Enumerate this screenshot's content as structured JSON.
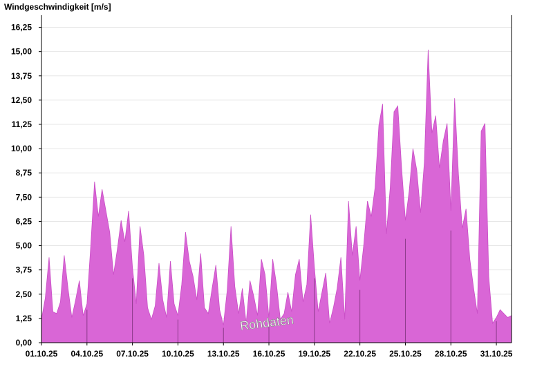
{
  "chart_data": {
    "type": "area",
    "title": "",
    "ylabel": "Windgeschwindigkeit [m/s]",
    "xlabel": "",
    "ylim": [
      0,
      16.875
    ],
    "xlim": [
      "2025-10-01",
      "2025-11-01"
    ],
    "yticks": [
      "0,00",
      "1,25",
      "2,50",
      "3,75",
      "5,00",
      "6,25",
      "7,50",
      "8,75",
      "10,00",
      "11,25",
      "12,50",
      "13,75",
      "15,00",
      "16,25"
    ],
    "xticks": [
      "01.10.25",
      "04.10.25",
      "07.10.25",
      "10.10.25",
      "13.10.25",
      "16.10.25",
      "19.10.25",
      "22.10.25",
      "25.10.25",
      "28.10.25",
      "31.10.25"
    ],
    "grid": true,
    "annotation": "Rohdaten",
    "colors": {
      "fill": "#d966d6",
      "stroke": "#c94fc6",
      "grid": "#e6e6e6",
      "axis": "#000000"
    },
    "series": [
      {
        "x": [
          "2025-10-01T00:00",
          "2025-10-01T06:00",
          "2025-10-01T12:00",
          "2025-10-01T18:00",
          "2025-10-02T00:00",
          "2025-10-02T06:00",
          "2025-10-02T12:00",
          "2025-10-02T18:00",
          "2025-10-03T00:00",
          "2025-10-03T06:00",
          "2025-10-03T12:00",
          "2025-10-03T18:00",
          "2025-10-04T00:00",
          "2025-10-04T06:00",
          "2025-10-04T12:00",
          "2025-10-04T18:00",
          "2025-10-05T00:00",
          "2025-10-05T06:00",
          "2025-10-05T12:00",
          "2025-10-05T18:00",
          "2025-10-06T00:00",
          "2025-10-06T06:00",
          "2025-10-06T12:00",
          "2025-10-06T18:00",
          "2025-10-07T00:00",
          "2025-10-07T06:00",
          "2025-10-07T12:00",
          "2025-10-07T18:00",
          "2025-10-08T00:00",
          "2025-10-08T06:00",
          "2025-10-08T12:00",
          "2025-10-08T18:00",
          "2025-10-09T00:00",
          "2025-10-09T06:00",
          "2025-10-09T12:00",
          "2025-10-09T18:00",
          "2025-10-10T00:00",
          "2025-10-10T06:00",
          "2025-10-10T12:00",
          "2025-10-10T18:00",
          "2025-10-11T00:00",
          "2025-10-11T06:00",
          "2025-10-11T12:00",
          "2025-10-11T18:00",
          "2025-10-12T00:00",
          "2025-10-12T06:00",
          "2025-10-12T12:00",
          "2025-10-12T18:00",
          "2025-10-13T00:00",
          "2025-10-13T06:00",
          "2025-10-13T12:00",
          "2025-10-13T18:00",
          "2025-10-14T00:00",
          "2025-10-14T06:00",
          "2025-10-14T12:00",
          "2025-10-14T18:00",
          "2025-10-15T00:00",
          "2025-10-15T06:00",
          "2025-10-15T12:00",
          "2025-10-15T18:00",
          "2025-10-16T00:00",
          "2025-10-16T06:00",
          "2025-10-16T12:00",
          "2025-10-16T18:00",
          "2025-10-17T00:00",
          "2025-10-17T06:00",
          "2025-10-17T12:00",
          "2025-10-17T18:00",
          "2025-10-18T00:00",
          "2025-10-18T06:00",
          "2025-10-18T12:00",
          "2025-10-18T18:00",
          "2025-10-19T00:00",
          "2025-10-19T06:00",
          "2025-10-19T12:00",
          "2025-10-19T18:00",
          "2025-10-20T00:00",
          "2025-10-20T06:00",
          "2025-10-20T12:00",
          "2025-10-20T18:00",
          "2025-10-21T00:00",
          "2025-10-21T06:00",
          "2025-10-21T12:00",
          "2025-10-21T18:00",
          "2025-10-22T00:00",
          "2025-10-22T06:00",
          "2025-10-22T12:00",
          "2025-10-22T18:00",
          "2025-10-23T00:00",
          "2025-10-23T06:00",
          "2025-10-23T12:00",
          "2025-10-23T18:00",
          "2025-10-24T00:00",
          "2025-10-24T06:00",
          "2025-10-24T12:00",
          "2025-10-24T18:00",
          "2025-10-25T00:00",
          "2025-10-25T06:00",
          "2025-10-25T12:00",
          "2025-10-25T18:00",
          "2025-10-26T00:00",
          "2025-10-26T06:00",
          "2025-10-26T12:00",
          "2025-10-26T18:00",
          "2025-10-27T00:00",
          "2025-10-27T06:00",
          "2025-10-27T12:00",
          "2025-10-27T18:00",
          "2025-10-28T00:00",
          "2025-10-28T06:00",
          "2025-10-28T12:00",
          "2025-10-28T18:00",
          "2025-10-29T00:00",
          "2025-10-29T06:00",
          "2025-10-29T12:00",
          "2025-10-29T18:00",
          "2025-10-30T00:00",
          "2025-10-30T06:00",
          "2025-10-30T12:00",
          "2025-10-30T18:00",
          "2025-10-31T00:00",
          "2025-10-31T06:00",
          "2025-10-31T12:00",
          "2025-10-31T18:00",
          "2025-11-01T00:00"
        ],
        "y": [
          1.2,
          2.3,
          4.4,
          1.6,
          1.5,
          2.1,
          4.5,
          2.8,
          1.3,
          2.2,
          3.2,
          1.4,
          2.0,
          5.0,
          8.3,
          6.5,
          7.9,
          6.8,
          5.7,
          3.5,
          4.8,
          6.3,
          5.2,
          6.8,
          3.9,
          2.0,
          6.0,
          4.5,
          1.8,
          1.2,
          1.9,
          4.1,
          2.2,
          1.3,
          4.2,
          2.0,
          1.4,
          3.0,
          5.7,
          4.2,
          3.4,
          2.2,
          4.6,
          1.8,
          1.5,
          2.8,
          4.0,
          1.7,
          0.9,
          2.7,
          6.0,
          2.9,
          1.5,
          2.8,
          1.0,
          3.2,
          2.4,
          1.4,
          4.3,
          3.5,
          1.3,
          4.3,
          3.0,
          1.2,
          1.5,
          2.6,
          1.6,
          3.5,
          4.3,
          2.1,
          3.0,
          6.6,
          3.9,
          1.6,
          2.6,
          3.6,
          1.0,
          1.8,
          2.8,
          4.4,
          1.2,
          7.3,
          4.5,
          6.0,
          3.2,
          5.0,
          7.3,
          6.5,
          8.0,
          11.2,
          12.3,
          5.6,
          8.0,
          11.9,
          12.2,
          9.0,
          6.3,
          7.8,
          10.0,
          8.9,
          6.7,
          9.3,
          15.1,
          10.8,
          11.7,
          9.0,
          10.4,
          11.3,
          6.8,
          12.6,
          8.7,
          5.9,
          6.9,
          4.3,
          2.8,
          1.5,
          10.9,
          11.3,
          3.4,
          1.0,
          1.3,
          1.7,
          1.5,
          1.3,
          1.4
        ]
      }
    ]
  }
}
